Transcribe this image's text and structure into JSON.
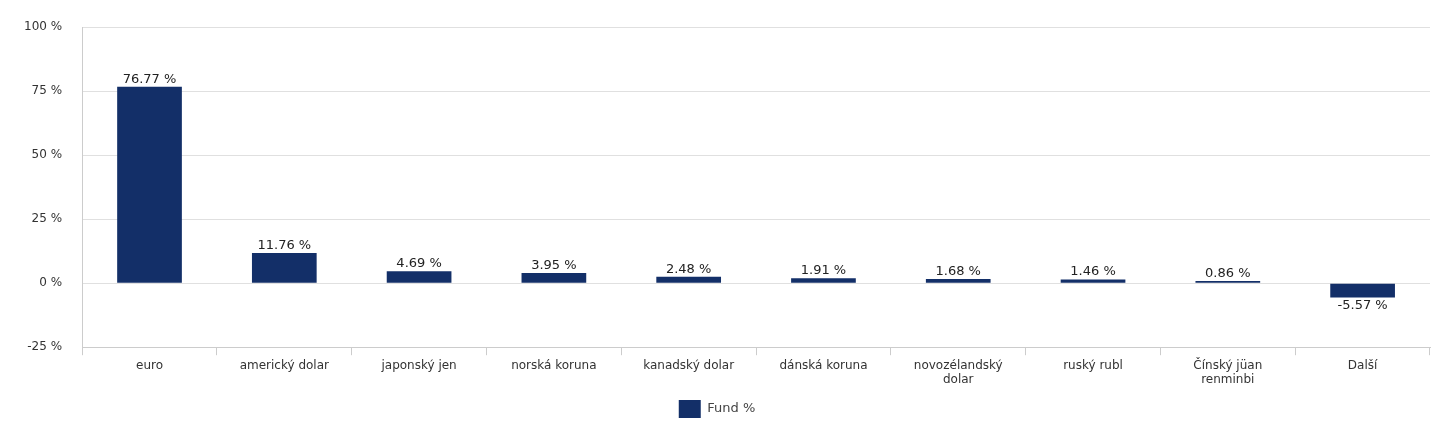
{
  "chart_data": {
    "type": "bar",
    "categories": [
      "euro",
      "americký dolar",
      "japonský jen",
      "norská koruna",
      "kanadský dolar",
      "dánská koruna",
      "novozélandský dolar",
      "ruský rubl",
      "Čínský jüan renminbi",
      "Další"
    ],
    "series": [
      {
        "name": "Fund %",
        "color": "#132f68",
        "values": [
          76.77,
          11.76,
          4.69,
          3.95,
          2.48,
          1.91,
          1.68,
          1.46,
          0.86,
          -5.57
        ],
        "value_labels": [
          "76.77 %",
          "11.76 %",
          "4.69 %",
          "3.95 %",
          "2.48 %",
          "1.91 %",
          "1.68 %",
          "1.46 %",
          "0.86 %",
          "-5.57 %"
        ]
      }
    ],
    "ylim": [
      -25,
      100
    ],
    "yticks": [
      {
        "value": -25,
        "label": "-25 %"
      },
      {
        "value": 0,
        "label": "0 %"
      },
      {
        "value": 25,
        "label": "25 %"
      },
      {
        "value": 50,
        "label": "50 %"
      },
      {
        "value": 75,
        "label": "75 %"
      },
      {
        "value": 100,
        "label": "100 %"
      }
    ],
    "grid": "y",
    "legend": "bottom"
  }
}
